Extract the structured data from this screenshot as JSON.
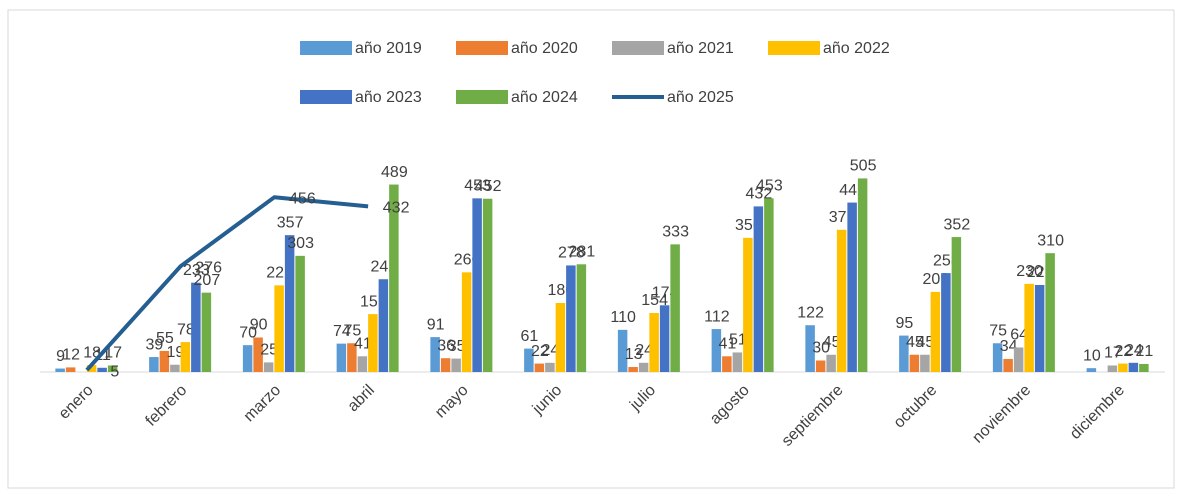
{
  "chart_data": {
    "type": "bar",
    "categories": [
      "enero",
      "febrero",
      "marzo",
      "abril",
      "mayo",
      "junio",
      "julio",
      "agosto",
      "septiembre",
      "octubre",
      "noviembre",
      "diciembre"
    ],
    "series": [
      {
        "name": "año 2019",
        "color": "#5b9bd5",
        "values": [
          9,
          39,
          70,
          74,
          91,
          61,
          110,
          112,
          122,
          95,
          75,
          10
        ]
      },
      {
        "name": "año 2020",
        "color": "#ed7d31",
        "values": [
          12,
          55,
          90,
          75,
          36,
          22,
          13,
          41,
          30,
          45,
          34,
          null
        ]
      },
      {
        "name": "año 2021",
        "color": "#a5a5a5",
        "values": [
          null,
          19,
          25,
          41,
          35,
          24,
          24,
          51,
          45,
          45,
          64,
          17
        ]
      },
      {
        "name": "año 2022",
        "color": "#ffc000",
        "values": [
          18,
          78,
          226,
          151,
          260,
          180,
          154,
          350,
          371,
          209,
          230,
          22
        ]
      },
      {
        "name": "año 2023",
        "color": "#4472c4",
        "values": [
          11,
          233,
          357,
          242,
          453,
          278,
          174,
          432,
          442,
          258,
          227,
          24
        ]
      },
      {
        "name": "año 2024",
        "color": "#70ad47",
        "values": [
          17,
          207,
          303,
          489,
          452,
          281,
          333,
          453,
          505,
          352,
          310,
          21
        ]
      },
      {
        "name": "año 2025",
        "color": "#255e91",
        "type": "line",
        "values": [
          5,
          276,
          456,
          432,
          null,
          null,
          null,
          null,
          null,
          null,
          null,
          null
        ]
      }
    ],
    "ylim": [
      0,
      600
    ]
  }
}
